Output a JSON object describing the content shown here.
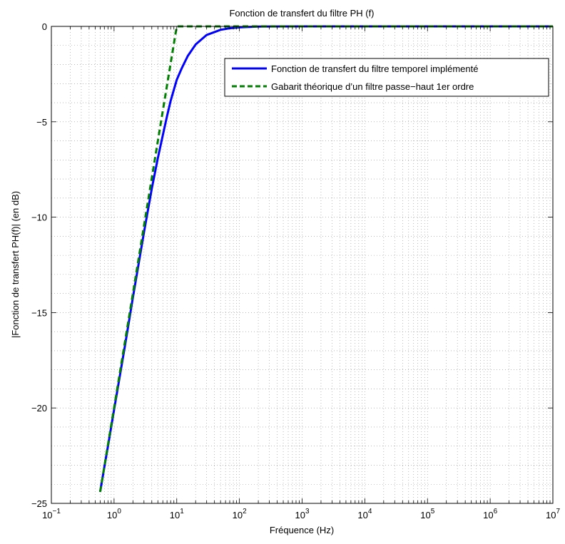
{
  "chart_data": {
    "type": "line",
    "title": "Fonction de transfert du filtre PH (f)",
    "xlabel": "Fréquence (Hz)",
    "ylabel": "|Fonction de transfert PH(f)| (en dB)",
    "xscale": "log",
    "xlim": [
      0.1,
      10000000
    ],
    "ylim": [
      -25,
      0
    ],
    "xticks": [
      {
        "base": "10",
        "exp": "−1",
        "value": 0.1
      },
      {
        "base": "10",
        "exp": "0",
        "value": 1
      },
      {
        "base": "10",
        "exp": "1",
        "value": 10
      },
      {
        "base": "10",
        "exp": "2",
        "value": 100
      },
      {
        "base": "10",
        "exp": "3",
        "value": 1000
      },
      {
        "base": "10",
        "exp": "4",
        "value": 10000
      },
      {
        "base": "10",
        "exp": "5",
        "value": 100000
      },
      {
        "base": "10",
        "exp": "6",
        "value": 1000000
      },
      {
        "base": "10",
        "exp": "7",
        "value": 10000000
      }
    ],
    "yticks": [
      {
        "label": "0",
        "value": 0
      },
      {
        "label": "−5",
        "value": -5
      },
      {
        "label": "−10",
        "value": -10
      },
      {
        "label": "−15",
        "value": -15
      },
      {
        "label": "−20",
        "value": -20
      },
      {
        "label": "−25",
        "value": -25
      }
    ],
    "grid": "major and minor, dotted",
    "legend_position": "top-right",
    "series": [
      {
        "name": "Fonction de transfert du filtre temporel implémenté",
        "color": "#0000ff",
        "style": "solid",
        "x": [
          0.6,
          0.7,
          0.8,
          1,
          1.5,
          2,
          3,
          4,
          5,
          6,
          7,
          8,
          10,
          12,
          15,
          20,
          30,
          50,
          70,
          100,
          200,
          1000,
          10000,
          100000,
          1000000,
          10000000
        ],
        "y": [
          -24.4,
          -23.1,
          -22.0,
          -20.1,
          -16.7,
          -14.2,
          -10.8,
          -8.5,
          -6.9,
          -5.7,
          -4.7,
          -3.9,
          -2.8,
          -2.2,
          -1.55,
          -0.95,
          -0.45,
          -0.18,
          -0.1,
          -0.05,
          -0.01,
          0,
          0,
          0,
          0,
          0
        ]
      },
      {
        "name": "Gabarit théorique d’un filtre passe−haut 1er ordre",
        "color": "#008000",
        "style": "dashed",
        "x": [
          0.6,
          1,
          2,
          5,
          10,
          100,
          1000,
          10000,
          100000,
          1000000,
          10000000
        ],
        "y": [
          -24.4,
          -20,
          -14,
          -6,
          0,
          0,
          0,
          0,
          0,
          0,
          0
        ]
      }
    ]
  }
}
